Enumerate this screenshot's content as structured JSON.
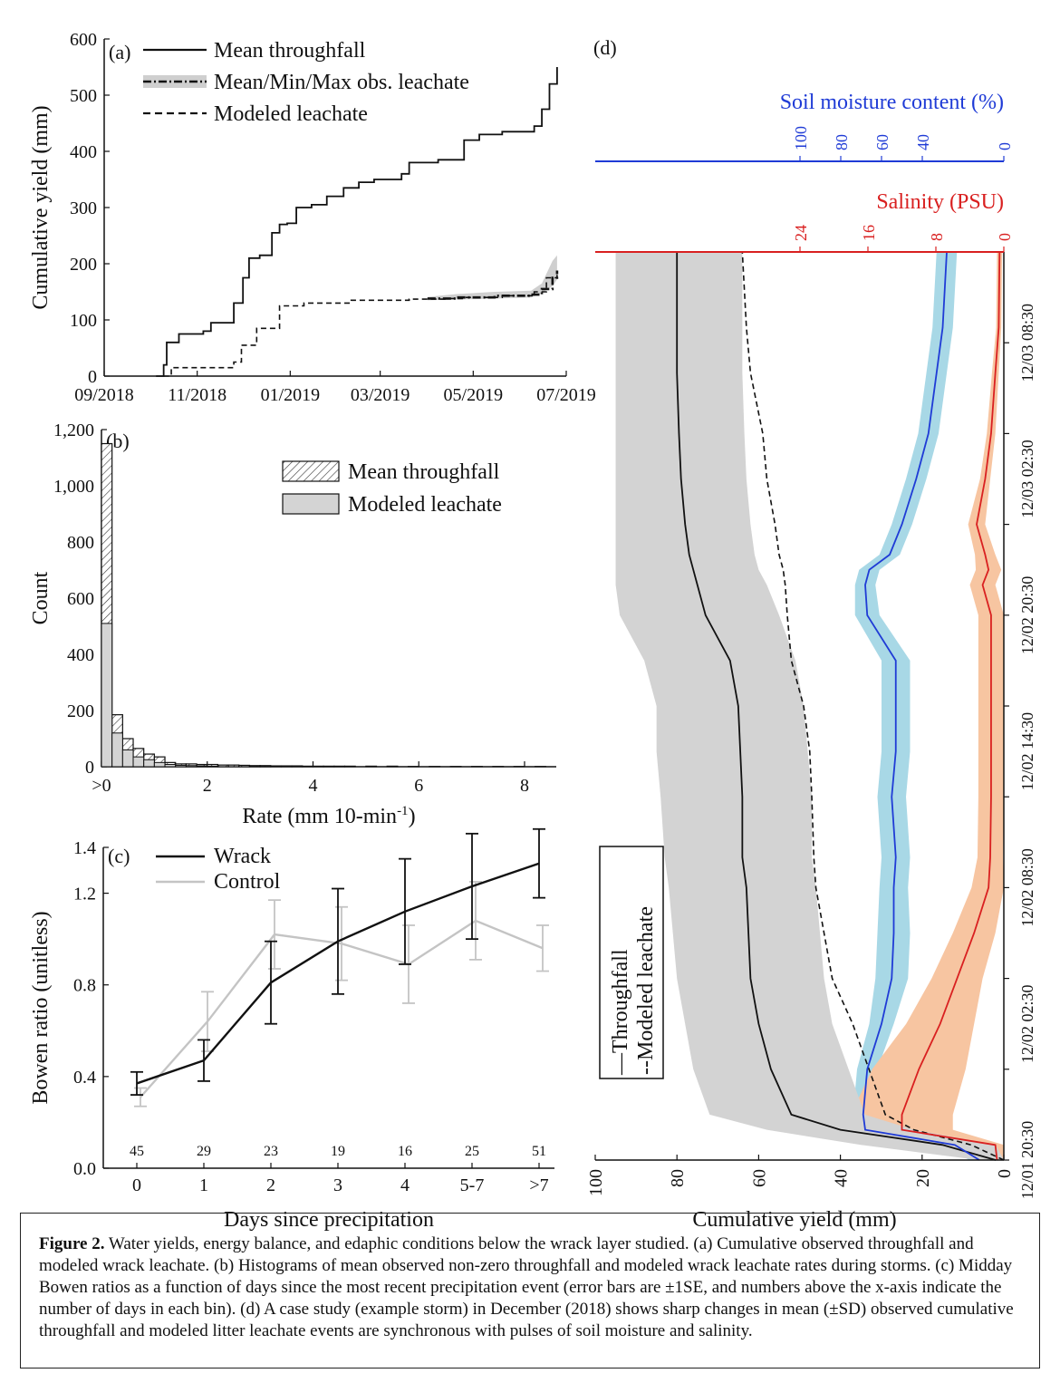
{
  "figure": {
    "caption_label": "Figure 2.",
    "caption_text": "Water yields, energy balance, and edaphic conditions below the wrack layer studied. (a) Cumulative observed throughfall and modeled wrack leachate. (b) Histograms of mean observed non-zero throughfall and modeled wrack leachate rates during storms. (c) Midday Bowen ratios as a function of days since the most recent precipitation event (error bars are ±1SE, and numbers above the x-axis indicate the number of days in each bin). (d) A case study (example storm) in December (2018) shows sharp changes in mean (±SD) observed cumulative throughfall and modeled litter leachate events are synchronous with pulses of soil moisture and salinity."
  },
  "chart_data": [
    {
      "panel": "(a)",
      "type": "line",
      "ylabel": "Cumulative yield (mm)",
      "ylim": [
        0,
        600
      ],
      "yticks": [
        "0",
        "100",
        "200",
        "300",
        "400",
        "500",
        "600"
      ],
      "xticks": [
        "09/2018",
        "11/2018",
        "01/2019",
        "03/2019",
        "05/2019",
        "07/2019"
      ],
      "legend": [
        "Mean throughfall",
        "Mean/Min/Max obs. leachate",
        "Modeled leachate"
      ],
      "series": [
        {
          "name": "Mean throughfall",
          "style": "solid",
          "x": [
            "2018-10-05",
            "2018-10-10",
            "2018-10-12",
            "2018-10-20",
            "2018-11-05",
            "2018-11-10",
            "2018-11-25",
            "2018-11-30",
            "2018-12-01",
            "2018-12-05",
            "2018-12-12",
            "2018-12-20",
            "2018-12-25",
            "2018-12-30",
            "2019-01-05",
            "2019-01-15",
            "2019-01-25",
            "2019-02-05",
            "2019-02-15",
            "2019-02-25",
            "2019-03-15",
            "2019-03-20",
            "2019-04-08",
            "2019-04-25",
            "2019-05-05",
            "2019-05-20",
            "2019-06-05",
            "2019-06-10",
            "2019-06-15",
            "2019-06-20",
            "2019-06-25"
          ],
          "y": [
            0,
            20,
            60,
            75,
            80,
            95,
            130,
            130,
            175,
            210,
            215,
            255,
            270,
            272,
            300,
            305,
            320,
            335,
            345,
            350,
            360,
            380,
            385,
            420,
            430,
            435,
            435,
            445,
            475,
            520,
            550
          ]
        },
        {
          "name": "Modeled leachate",
          "style": "dashed",
          "x": [
            "2018-10-10",
            "2018-10-15",
            "2018-11-05",
            "2018-11-25",
            "2018-11-30",
            "2018-12-10",
            "2018-12-25",
            "2019-01-10",
            "2019-02-10",
            "2019-03-20",
            "2019-04-15",
            "2019-04-25",
            "2019-05-20",
            "2019-06-10",
            "2019-06-18",
            "2019-06-25"
          ],
          "y": [
            0,
            15,
            15,
            25,
            55,
            85,
            125,
            130,
            135,
            137,
            138,
            140,
            143,
            150,
            175,
            185
          ]
        },
        {
          "name": "Mean/Min/Max obs. leachate",
          "style": "dashdot-band",
          "x": [
            "2019-04-01",
            "2019-04-20",
            "2019-05-15",
            "2019-06-08",
            "2019-06-15",
            "2019-06-22",
            "2019-06-25"
          ],
          "y": [
            138,
            140,
            143,
            145,
            155,
            175,
            188
          ],
          "min": [
            135,
            136,
            138,
            140,
            148,
            160,
            172
          ],
          "max": [
            141,
            146,
            150,
            152,
            165,
            205,
            215
          ]
        }
      ]
    },
    {
      "panel": "(b)",
      "type": "bar",
      "xlabel": "Rate (mm 10-min",
      "xlabel_sup": "-1",
      "xlabel_end": ")",
      "ylabel": "Count",
      "ylim": [
        0,
        1200
      ],
      "yticks": [
        "0",
        "200",
        "400",
        "600",
        "800",
        "1,000",
        "1,200"
      ],
      "xticks": [
        ">0",
        "2",
        "4",
        "6",
        "8"
      ],
      "legend": [
        "Mean throughfall",
        "Modeled leachate"
      ],
      "bin_width": 0.2,
      "series": [
        {
          "name": "Mean throughfall",
          "pattern": "hatched",
          "bin_start": [
            0,
            0.2,
            0.4,
            0.6,
            0.8,
            1.0,
            1.2,
            1.4,
            1.6,
            1.8,
            2.0,
            2.2,
            2.4,
            2.6,
            2.8,
            3.0,
            3.2,
            3.4,
            3.6,
            3.8,
            4.0,
            4.2,
            4.4,
            4.6,
            5.0,
            5.4,
            5.8,
            6.2,
            6.6,
            7.0,
            7.4,
            7.8,
            8.2
          ],
          "values": [
            1150,
            185,
            100,
            65,
            45,
            35,
            15,
            10,
            10,
            8,
            8,
            6,
            6,
            5,
            4,
            4,
            3,
            3,
            3,
            2,
            2,
            2,
            2,
            2,
            2,
            2,
            1,
            1,
            1,
            1,
            1,
            1,
            1
          ]
        },
        {
          "name": "Modeled leachate",
          "pattern": "solid-gray",
          "bin_start": [
            0,
            0.2,
            0.4,
            0.6,
            0.8,
            1.0,
            1.2,
            1.4,
            1.6,
            1.8,
            2.0
          ],
          "values": [
            510,
            120,
            60,
            35,
            25,
            15,
            8,
            5,
            4,
            3,
            2
          ]
        }
      ]
    },
    {
      "panel": "(c)",
      "type": "line",
      "xlabel": "Days since precipitation",
      "ylabel": "Bowen ratio (unitless)",
      "ylim": [
        0,
        1.4
      ],
      "yticks": [
        "0.0",
        "0.4",
        "0.8",
        "1.2"
      ],
      "ytick_values": [
        0,
        0.4,
        0.8,
        1.2
      ],
      "y_top_label": "1.4",
      "categories": [
        "0",
        "1",
        "2",
        "3",
        "4",
        "5-7",
        ">7"
      ],
      "bin_counts": [
        "45",
        "29",
        "23",
        "19",
        "16",
        "25",
        "51"
      ],
      "legend": [
        "Wrack",
        "Control"
      ],
      "series": [
        {
          "name": "Wrack",
          "color": "#111111",
          "values": [
            0.37,
            0.47,
            0.81,
            0.99,
            1.12,
            1.23,
            1.33
          ],
          "se": [
            0.05,
            0.09,
            0.18,
            0.23,
            0.23,
            0.23,
            0.15
          ]
        },
        {
          "name": "Control",
          "color": "#c4c4c4",
          "values": [
            0.31,
            0.64,
            1.02,
            0.98,
            0.89,
            1.08,
            0.96
          ],
          "se": [
            0.04,
            0.13,
            0.15,
            0.16,
            0.17,
            0.17,
            0.1
          ]
        }
      ]
    },
    {
      "panel": "(d)",
      "type": "line",
      "xlabel": "Cumulative yield (mm)",
      "xticks": [
        "100",
        "80",
        "60",
        "40",
        "20",
        "0"
      ],
      "top_axis_1_label": "Soil moisture content (%)",
      "top_axis_1_ticks": [
        "100",
        "80",
        "60",
        "40",
        "0"
      ],
      "top_axis_1_color": "#1f3bd6",
      "top_axis_2_label": "Salinity (PSU)",
      "top_axis_2_ticks": [
        "24",
        "16",
        "8",
        "0"
      ],
      "top_axis_2_color": "#d92020",
      "time_ticks": [
        "12/03 08:30",
        "12/03 02:30",
        "12/02 20:30",
        "12/02 14:30",
        "12/02 08:30",
        "12/02 02:30",
        "12/01 20:30"
      ],
      "legend": [
        "—Throughfall",
        "--Modeled leachate"
      ],
      "time_hours": [
        0,
        1,
        2,
        3,
        6,
        9,
        12,
        15,
        18,
        20,
        24,
        27,
        30,
        33,
        36,
        38,
        39,
        40,
        42,
        45,
        48,
        52,
        55,
        60
      ],
      "series": [
        {
          "name": "Throughfall",
          "color": "#111111",
          "units": "mm",
          "values": [
            2,
            15,
            40,
            52,
            57,
            60,
            62,
            62.5,
            63,
            64,
            64,
            64.5,
            65,
            67,
            73,
            75,
            76,
            77,
            78,
            79,
            79.5,
            80,
            80,
            80
          ],
          "sd_low": [
            0,
            2,
            22,
            34,
            38,
            42,
            44,
            45,
            46,
            47,
            47,
            48,
            49,
            51,
            55,
            58,
            60,
            61,
            62,
            63,
            63.5,
            64,
            64,
            64
          ],
          "sd_high": [
            6,
            35,
            58,
            72,
            76,
            78,
            80,
            81,
            82,
            83,
            84,
            85,
            85,
            88,
            94,
            95,
            95,
            95,
            95,
            95,
            95,
            95,
            95,
            95
          ]
        },
        {
          "name": "Modeled leachate",
          "color": "#111111",
          "style": "dashed",
          "units": "mm",
          "values": [
            0,
            8,
            22,
            29,
            33,
            37,
            42,
            44,
            46,
            46.5,
            47,
            47.5,
            49,
            52,
            53,
            53.5,
            54,
            55,
            56,
            58,
            59,
            62,
            63,
            64
          ]
        },
        {
          "name": "Soil moisture content",
          "color": "#1f3bd6",
          "units": "%",
          "values": [
            12,
            24,
            68,
            69,
            67,
            60,
            55,
            54,
            54,
            53,
            55,
            53,
            53,
            53,
            67,
            68,
            66,
            56,
            50,
            43,
            37,
            33,
            30,
            28
          ],
          "sd": [
            5,
            5,
            5,
            5,
            5,
            6,
            8,
            8,
            7,
            7,
            7,
            7,
            7,
            7,
            6,
            5,
            5,
            5,
            5,
            5,
            5,
            5,
            5,
            5
          ]
        },
        {
          "name": "Salinity",
          "color": "#d92020",
          "units": "PSU",
          "values": [
            0.8,
            1,
            12,
            12,
            10,
            7.5,
            5.5,
            3.5,
            1.8,
            1.6,
            1.5,
            1.5,
            1.5,
            1.5,
            1.5,
            2.5,
            1.8,
            2.2,
            3.2,
            2.2,
            1.5,
            1.0,
            0.6,
            0.5
          ],
          "sd": [
            0.8,
            1,
            6,
            6,
            5.5,
            4,
            3,
            2.5,
            2,
            1.5,
            1.5,
            1.5,
            1.5,
            1.5,
            1.5,
            1.5,
            1.5,
            1.2,
            1,
            0.6,
            0.5,
            0.4,
            0.3,
            0.3
          ]
        }
      ]
    }
  ]
}
